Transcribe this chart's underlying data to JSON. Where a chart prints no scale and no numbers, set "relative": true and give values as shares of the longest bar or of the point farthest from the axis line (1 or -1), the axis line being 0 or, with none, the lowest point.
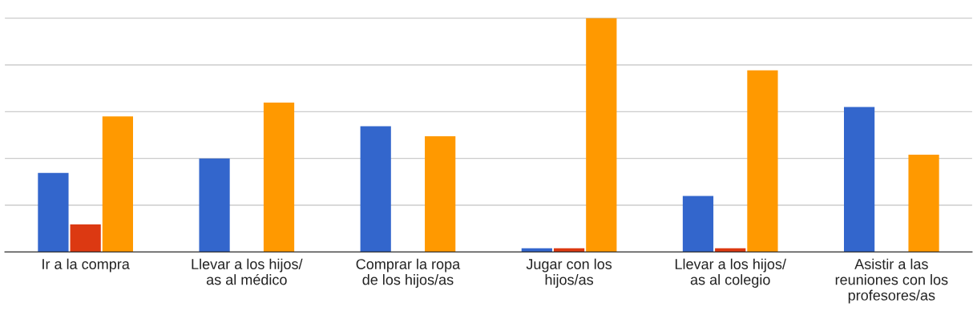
{
  "chart_data": {
    "type": "bar",
    "relative": true,
    "grid": "y",
    "categories": [
      "Ir a la compra",
      "Llevar a los hijos/\nas al médico",
      "Comprar la ropa\nde los hijos/as",
      "Jugar con los\nhijos/as",
      "Llevar a los hijos/\nas al colegio",
      "Asistir a las\nreuniones con los\nprofesores/as"
    ],
    "series": [
      {
        "color": "#3366cc",
        "values": [
          0.338,
          0.4,
          0.538,
          0.016,
          0.239,
          0.62
        ]
      },
      {
        "color": "#dc3912",
        "values": [
          0.118,
          null,
          null,
          0.016,
          0.016,
          null
        ]
      },
      {
        "color": "#ff9900",
        "values": [
          0.58,
          0.639,
          0.495,
          1.0,
          0.777,
          0.416
        ]
      }
    ]
  }
}
